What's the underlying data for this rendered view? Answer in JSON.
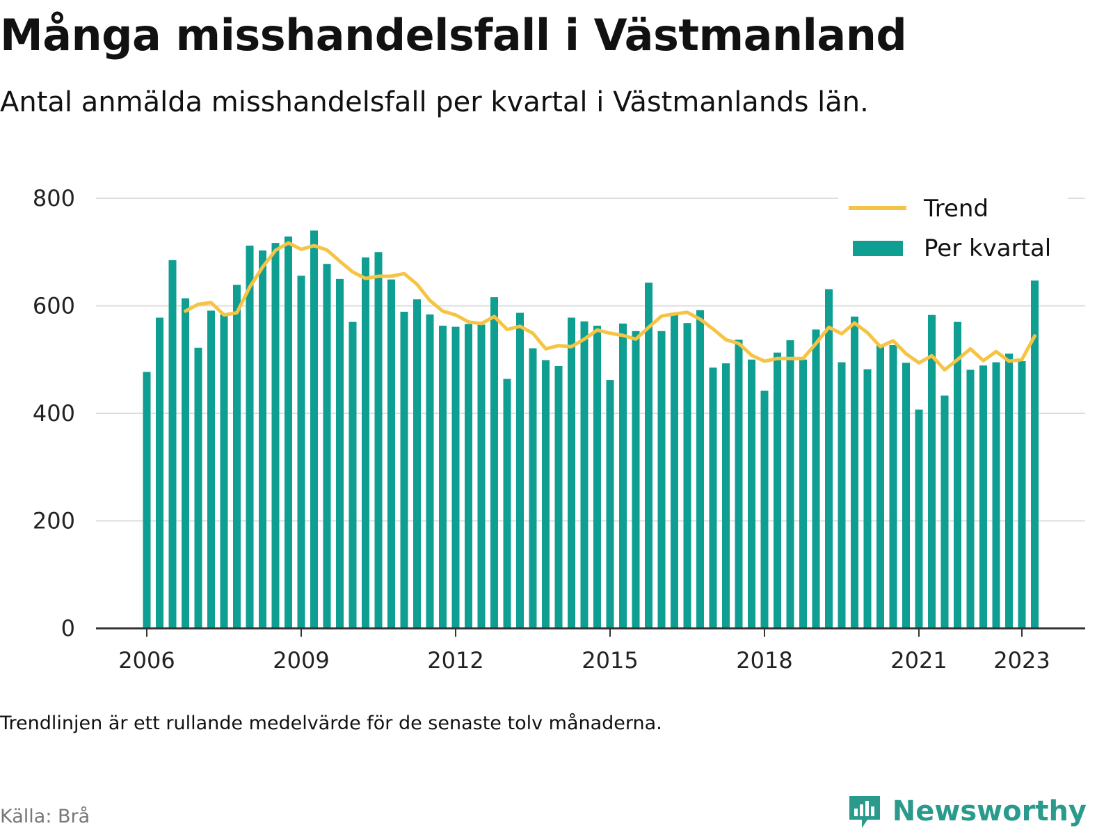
{
  "header": {
    "title": "Många misshandelsfall i Västmanland",
    "subtitle": "Antal anmälda misshandelsfall per kvartal i Västmanlands län."
  },
  "footer": {
    "note": "Trendlinjen är ett rullande medelvärde för de senaste tolv månaderna.",
    "source": "Källa: Brå",
    "brand": "Newsworthy"
  },
  "colors": {
    "bars": "#0e9e92",
    "trend": "#f6c445",
    "grid": "#dddddd",
    "axis": "#333333"
  },
  "icons": {
    "brand": "newsworthy-logo-icon"
  },
  "chart_data": {
    "type": "bar",
    "x_start": "2006 Q1",
    "x_tick_labels": [
      "2006",
      "2009",
      "2012",
      "2015",
      "2018",
      "2021",
      "2023"
    ],
    "y_tick_labels": [
      "0",
      "200",
      "400",
      "600",
      "800"
    ],
    "ylim": [
      0,
      800
    ],
    "grid": true,
    "legend_position": "top-right",
    "series": [
      {
        "name": "Per kvartal",
        "type": "bar",
        "values": [
          477,
          578,
          685,
          614,
          522,
          591,
          584,
          639,
          712,
          703,
          717,
          729,
          656,
          740,
          678,
          650,
          570,
          690,
          700,
          649,
          589,
          612,
          584,
          563,
          561,
          566,
          565,
          616,
          464,
          587,
          521,
          499,
          488,
          578,
          571,
          563,
          462,
          567,
          553,
          643,
          553,
          586,
          568,
          592,
          485,
          493,
          537,
          500,
          442,
          513,
          536,
          500,
          556,
          631,
          495,
          580,
          482,
          527,
          527,
          494,
          407,
          583,
          433,
          570,
          481,
          489,
          495,
          511,
          497,
          647
        ],
        "color": "#0e9e92"
      },
      {
        "name": "Trend",
        "type": "line",
        "start_index": 3,
        "values": [
          590,
          603,
          606,
          583,
          587,
          635,
          672,
          703,
          717,
          705,
          712,
          704,
          683,
          663,
          651,
          655,
          655,
          660,
          640,
          610,
          590,
          583,
          570,
          567,
          580,
          556,
          562,
          549,
          520,
          526,
          524,
          538,
          555,
          549,
          545,
          538,
          560,
          581,
          585,
          588,
          575,
          557,
          537,
          530,
          508,
          497,
          502,
          502,
          502,
          530,
          560,
          548,
          568,
          550,
          524,
          535,
          511,
          494,
          507,
          481,
          500,
          520,
          498,
          515,
          497,
          500,
          544
        ],
        "color": "#f6c445"
      }
    ]
  }
}
